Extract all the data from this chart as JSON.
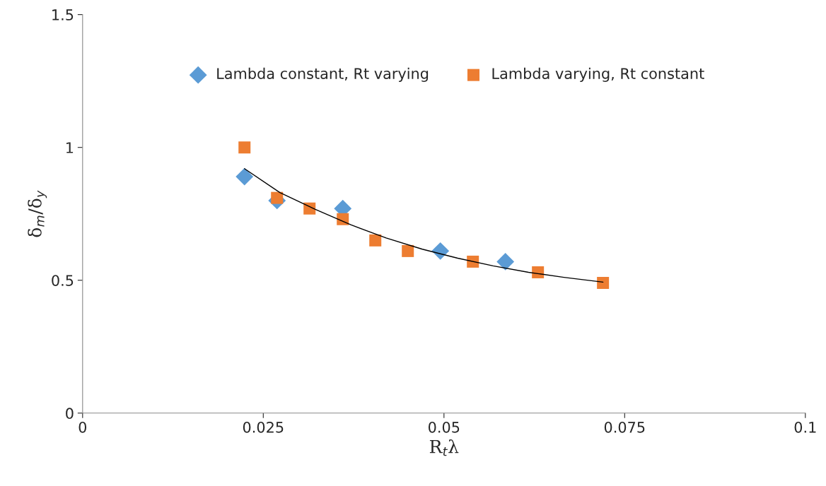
{
  "chart_data": {
    "type": "scatter",
    "xlabel": "R$_{t}$λ",
    "ylabel": "δ$_{m}$/δ$_{y}$",
    "xlim": [
      0,
      0.1
    ],
    "xticks": [
      0,
      0.025,
      0.05,
      0.075,
      0.1
    ],
    "ylim": [
      0,
      1.5
    ],
    "yticks": [
      0,
      0.5,
      1,
      1.5
    ],
    "grid": false,
    "legend": "top",
    "series": [
      {
        "name": "Lambda constant, Rt varying",
        "color": "#5b9bd5",
        "marker": "diamond",
        "x": [
          0.0224,
          0.0269,
          0.036,
          0.0495,
          0.0585
        ],
        "values": [
          0.89,
          0.8,
          0.77,
          0.61,
          0.57
        ]
      },
      {
        "name": "Lambda varying, Rt constant",
        "color": "#ed7d31",
        "marker": "square",
        "x": [
          0.0224,
          0.0269,
          0.0314,
          0.036,
          0.0405,
          0.045,
          0.054,
          0.063,
          0.072
        ],
        "values": [
          1.0,
          0.81,
          0.77,
          0.73,
          0.65,
          0.61,
          0.57,
          0.53,
          0.49
        ]
      },
      {
        "type": "line",
        "color": "#000000",
        "marker": "none",
        "x": [
          0.0224,
          0.0273,
          0.0322,
          0.0371,
          0.042,
          0.047,
          0.0519,
          0.0568,
          0.0617,
          0.0666,
          0.072
        ],
        "values": [
          0.92,
          0.83,
          0.767,
          0.709,
          0.659,
          0.617,
          0.583,
          0.554,
          0.53,
          0.511,
          0.493
        ]
      }
    ]
  }
}
